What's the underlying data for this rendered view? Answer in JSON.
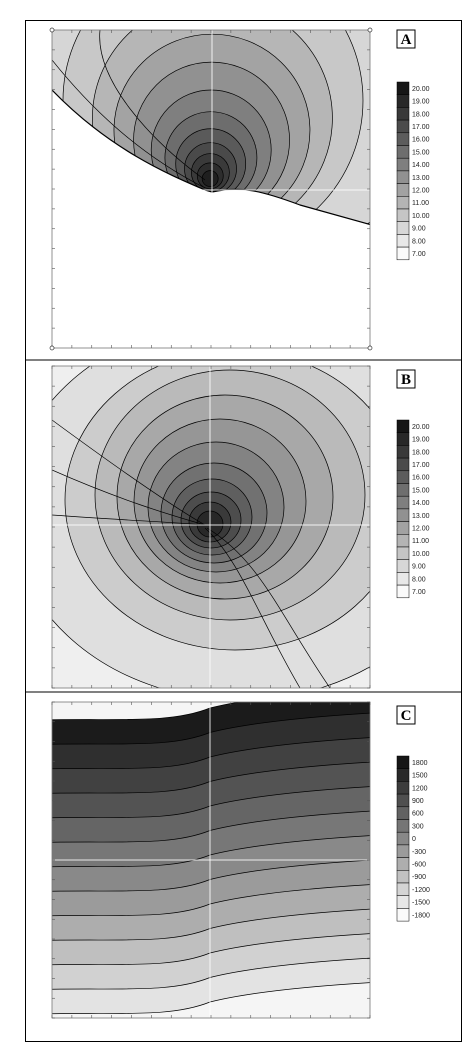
{
  "panels": [
    {
      "id": "A",
      "letter": "A",
      "legend": [
        "20.00",
        "19.00",
        "18.00",
        "17.00",
        "16.00",
        "15.00",
        "14.00",
        "13.00",
        "12.00",
        "11.00",
        "10.00",
        "9.00",
        "8.00",
        "7.00"
      ]
    },
    {
      "id": "B",
      "letter": "B",
      "legend": [
        "20.00",
        "19.00",
        "18.00",
        "17.00",
        "16.00",
        "15.00",
        "14.00",
        "13.00",
        "12.00",
        "11.00",
        "10.00",
        "9.00",
        "8.00",
        "7.00"
      ]
    },
    {
      "id": "C",
      "letter": "C",
      "legend": [
        "1800",
        "1500",
        "1200",
        "900",
        "600",
        "300",
        "0",
        "-300",
        "-600",
        "-900",
        "-1200",
        "-1500",
        "-1800"
      ]
    }
  ],
  "colors": {
    "ramp_dark": "#151515",
    "ramp_light": "#ffffff",
    "line": "#000000"
  }
}
